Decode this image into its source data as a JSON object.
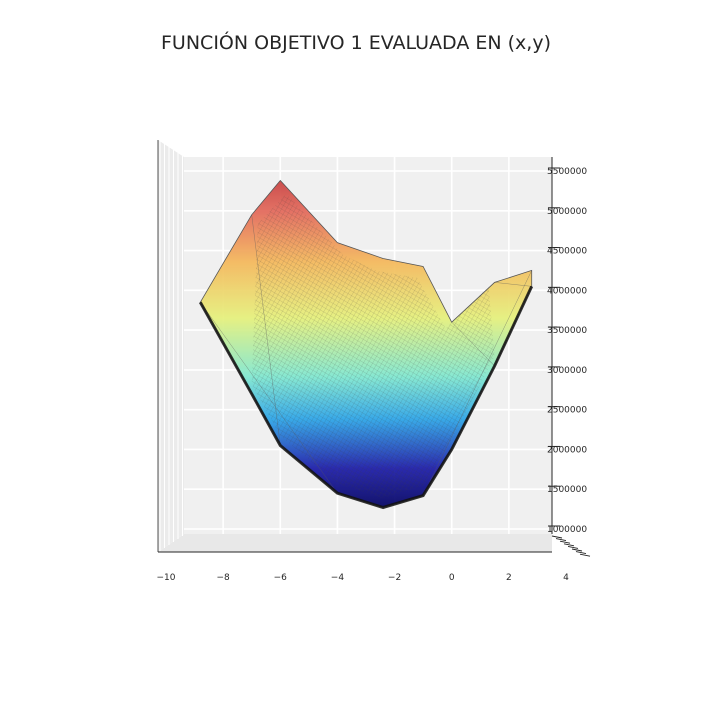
{
  "chart_data": {
    "type": "surface3d",
    "title": "FUNCIÓN OBJETIVO 1 EVALUADA EN (x,y)",
    "xlabel": "",
    "ylabel": "",
    "zlabel": "",
    "x_ticks": [
      "−10",
      "−8",
      "−6",
      "−4",
      "−2",
      "0",
      "2",
      "4"
    ],
    "z_ticks": [
      "1000000",
      "1500000",
      "2000000",
      "2500000",
      "3000000",
      "3500000",
      "4000000",
      "4500000",
      "5000000",
      "5500000"
    ],
    "xlim": [
      -10,
      4
    ],
    "zlim": [
      1000000,
      5500000
    ],
    "colormap": "jet",
    "grid": true,
    "surface_profile": {
      "description_free": true,
      "x": [
        -8.8,
        -7.0,
        -6.0,
        -4.0,
        -2.4,
        -1.0,
        0.0,
        1.5,
        2.8
      ],
      "z_upper": [
        3850000,
        4950000,
        5380000,
        4600000,
        4400000,
        4300000,
        3600000,
        4100000,
        4250000
      ],
      "z_lower": [
        3850000,
        2700000,
        2050000,
        1450000,
        1270000,
        1420000,
        2000000,
        3050000,
        4050000
      ]
    }
  }
}
